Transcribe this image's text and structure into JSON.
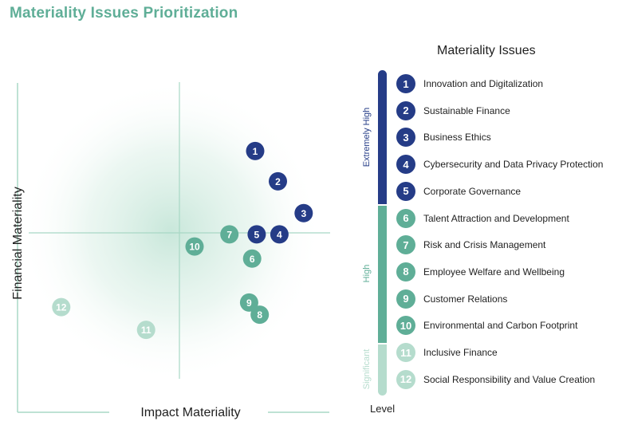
{
  "title": "Materiality Issues Prioritization",
  "colors": {
    "title": "#5fae97",
    "extremely_high": "#253c87",
    "high": "#5fae97",
    "significant": "#b5dccd",
    "axis": "#a8d8c5"
  },
  "chart_data": {
    "type": "scatter",
    "xlabel": "Impact Materiality",
    "ylabel": "Financial Materiality",
    "grid": false,
    "points": [
      {
        "label": "1",
        "x": 0.5,
        "y": 0.54,
        "level": "Extremely High"
      },
      {
        "label": "2",
        "x": 0.65,
        "y": 0.34,
        "level": "Extremely High"
      },
      {
        "label": "3",
        "x": 0.82,
        "y": 0.13,
        "level": "Extremely High"
      },
      {
        "label": "4",
        "x": 0.66,
        "y": -0.01,
        "level": "Extremely High"
      },
      {
        "label": "5",
        "x": 0.51,
        "y": -0.01,
        "level": "Extremely High"
      },
      {
        "label": "6",
        "x": 0.48,
        "y": -0.17,
        "level": "High"
      },
      {
        "label": "7",
        "x": 0.33,
        "y": -0.01,
        "level": "High"
      },
      {
        "label": "8",
        "x": 0.53,
        "y": -0.54,
        "level": "High"
      },
      {
        "label": "9",
        "x": 0.46,
        "y": -0.46,
        "level": "High"
      },
      {
        "label": "10",
        "x": 0.1,
        "y": -0.09,
        "level": "High"
      },
      {
        "label": "11",
        "x": -0.22,
        "y": -0.64,
        "level": "Significant"
      },
      {
        "label": "12",
        "x": -0.78,
        "y": -0.49,
        "level": "Significant"
      }
    ]
  },
  "legend": {
    "title": "Materiality Issues",
    "footer": "Level",
    "tiers": [
      {
        "name": "Extremely High",
        "key": "extremely_high"
      },
      {
        "name": "High",
        "key": "high"
      },
      {
        "name": "Significant",
        "key": "significant"
      }
    ],
    "items": [
      {
        "num": "1",
        "label": "Innovation and Digitalization",
        "tier": "extremely_high"
      },
      {
        "num": "2",
        "label": "Sustainable Finance",
        "tier": "extremely_high"
      },
      {
        "num": "3",
        "label": "Business Ethics",
        "tier": "extremely_high"
      },
      {
        "num": "4",
        "label": "Cybersecurity and Data Privacy Protection",
        "tier": "extremely_high"
      },
      {
        "num": "5",
        "label": "Corporate Governance",
        "tier": "extremely_high"
      },
      {
        "num": "6",
        "label": "Talent Attraction and Development",
        "tier": "high"
      },
      {
        "num": "7",
        "label": "Risk and Crisis Management",
        "tier": "high"
      },
      {
        "num": "8",
        "label": "Employee Welfare and Wellbeing",
        "tier": "high"
      },
      {
        "num": "9",
        "label": "Customer Relations",
        "tier": "high"
      },
      {
        "num": "10",
        "label": "Environmental and Carbon Footprint",
        "tier": "high"
      },
      {
        "num": "11",
        "label": "Inclusive Finance",
        "tier": "significant"
      },
      {
        "num": "12",
        "label": "Social Responsibility and Value Creation",
        "tier": "significant"
      }
    ]
  }
}
